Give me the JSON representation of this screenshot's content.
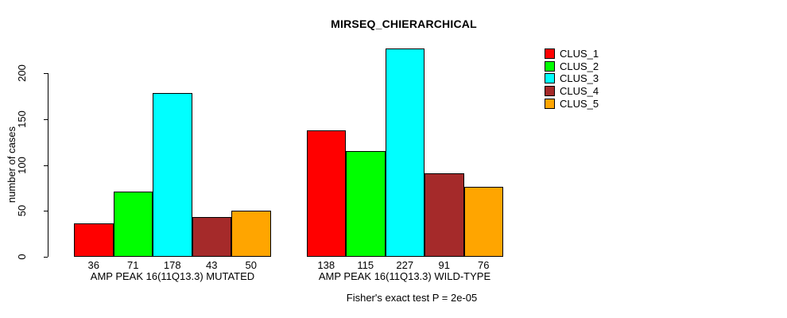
{
  "chart_data": {
    "type": "bar",
    "title": "MIRSEQ_CHIERARCHICAL",
    "ylabel": "number of cases",
    "xlabel": "",
    "yticks": [
      0,
      50,
      100,
      150,
      200
    ],
    "ylim": [
      0,
      231
    ],
    "grid": false,
    "legend_position": "right-outside",
    "series": [
      {
        "name": "CLUS_1",
        "color": "#FF0000"
      },
      {
        "name": "CLUS_2",
        "color": "#00FF00"
      },
      {
        "name": "CLUS_3",
        "color": "#00FFFF"
      },
      {
        "name": "CLUS_4",
        "color": "#A52A2A"
      },
      {
        "name": "CLUS_5",
        "color": "#FFA500"
      }
    ],
    "groups": [
      {
        "label": "AMP PEAK 16(11Q13.3) MUTATED",
        "values": [
          36,
          71,
          178,
          43,
          50
        ]
      },
      {
        "label": "AMP PEAK 16(11Q13.3) WILD-TYPE",
        "values": [
          138,
          115,
          227,
          91,
          76
        ]
      }
    ],
    "bar_value_labels_shown": true,
    "annotation": "Fisher's exact test P = 2e-05",
    "axis_color": "#000000",
    "background_color": "#FFFFFF"
  }
}
